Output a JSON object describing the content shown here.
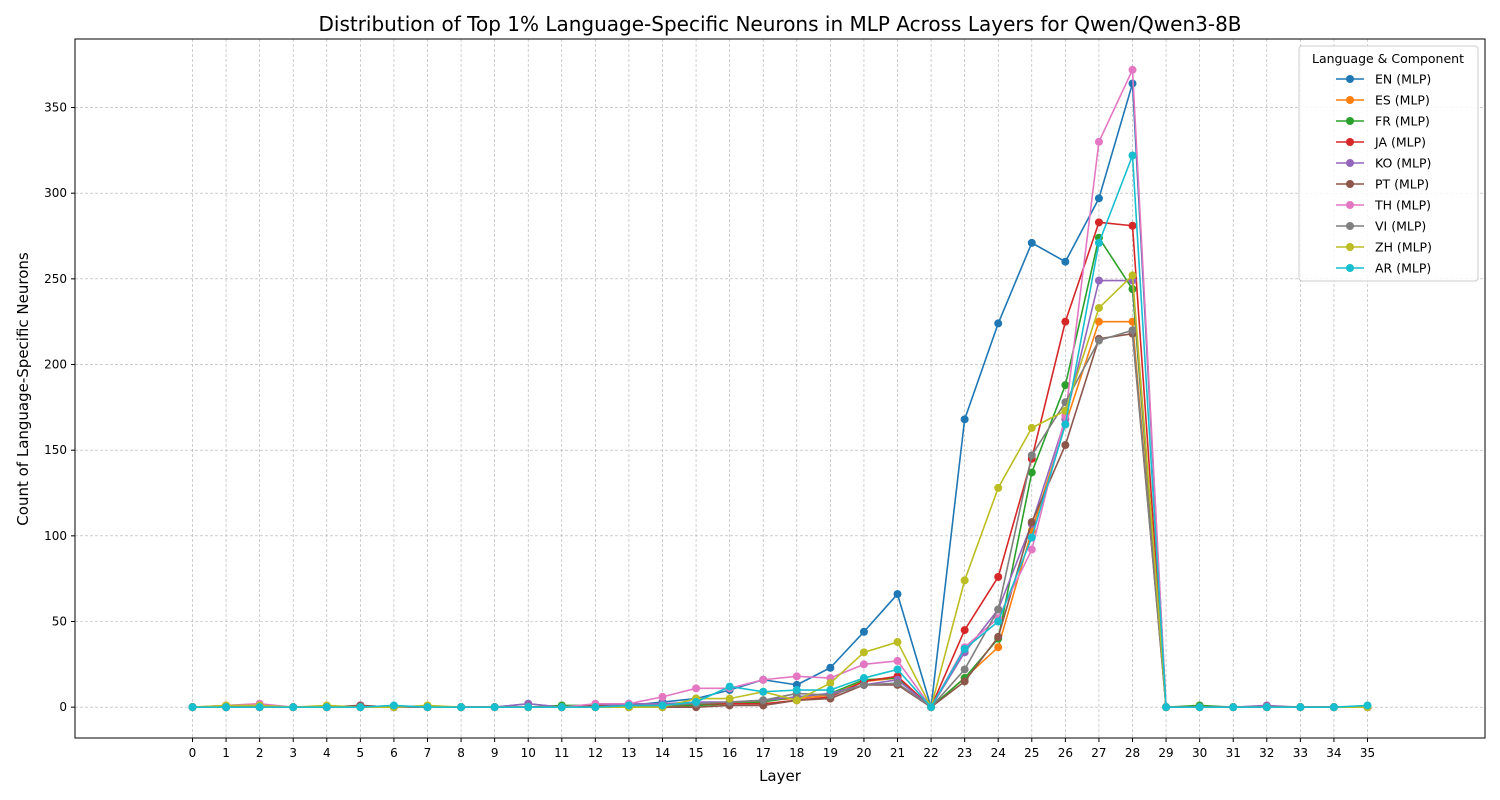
{
  "chart_data": {
    "type": "line",
    "title": "Distribution of Top 1% Language-Specific Neurons in MLP Across Layers for Qwen/Qwen3-8B",
    "xlabel": "Layer",
    "ylabel": "Count of Language-Specific Neurons",
    "x": [
      0,
      1,
      2,
      3,
      4,
      5,
      6,
      7,
      8,
      9,
      10,
      11,
      12,
      13,
      14,
      15,
      16,
      17,
      18,
      19,
      20,
      21,
      22,
      23,
      24,
      25,
      26,
      27,
      28,
      29,
      30,
      31,
      32,
      33,
      34,
      35
    ],
    "xticks": [
      "0",
      "1",
      "2",
      "3",
      "4",
      "5",
      "6",
      "7",
      "8",
      "9",
      "10",
      "11",
      "12",
      "13",
      "14",
      "15",
      "16",
      "17",
      "18",
      "19",
      "20",
      "21",
      "22",
      "23",
      "24",
      "25",
      "26",
      "27",
      "28",
      "29",
      "30",
      "31",
      "32",
      "33",
      "34",
      "35"
    ],
    "ylim": [
      -18,
      390
    ],
    "yticks": [
      "0",
      "50",
      "100",
      "150",
      "200",
      "250",
      "300",
      "350"
    ],
    "grid": true,
    "legend": {
      "title": "Language & Component",
      "placement": "top-right"
    },
    "series": [
      {
        "name": "EN (MLP)",
        "color": "#1f77b4",
        "values": [
          0,
          0,
          0,
          0,
          0,
          0,
          0,
          0,
          0,
          0,
          2,
          0,
          1,
          1,
          3,
          5,
          10,
          16,
          13,
          23,
          44,
          66,
          0,
          168,
          224,
          271,
          260,
          297,
          364,
          0,
          0,
          0,
          0,
          0,
          0,
          0
        ]
      },
      {
        "name": "ES (MLP)",
        "color": "#ff7f0e",
        "values": [
          0,
          0,
          0,
          0,
          0,
          0,
          0,
          0,
          0,
          0,
          0,
          0,
          0,
          0,
          0,
          1,
          2,
          4,
          5,
          7,
          15,
          17,
          0,
          17,
          35,
          103,
          165,
          225,
          225,
          0,
          0,
          0,
          0,
          0,
          0,
          0
        ]
      },
      {
        "name": "FR (MLP)",
        "color": "#2ca02c",
        "values": [
          0,
          0,
          0,
          0,
          0,
          0,
          0,
          0,
          0,
          0,
          0,
          1,
          1,
          0,
          1,
          1,
          2,
          3,
          6,
          8,
          16,
          17,
          0,
          17,
          40,
          137,
          188,
          274,
          244,
          0,
          1,
          0,
          0,
          0,
          0,
          0
        ]
      },
      {
        "name": "JA (MLP)",
        "color": "#d62728",
        "values": [
          0,
          0,
          0,
          0,
          0,
          0,
          0,
          0,
          0,
          0,
          0,
          0,
          0,
          1,
          1,
          2,
          2,
          2,
          4,
          6,
          15,
          18,
          0,
          45,
          76,
          145,
          225,
          283,
          281,
          0,
          0,
          0,
          0,
          0,
          0,
          0
        ]
      },
      {
        "name": "KO (MLP)",
        "color": "#9467bd",
        "values": [
          0,
          0,
          0,
          0,
          0,
          1,
          0,
          0,
          0,
          0,
          2,
          0,
          1,
          2,
          2,
          3,
          3,
          4,
          6,
          8,
          13,
          16,
          0,
          32,
          57,
          107,
          168,
          249,
          249,
          0,
          0,
          0,
          1,
          0,
          0,
          0
        ]
      },
      {
        "name": "PT (MLP)",
        "color": "#8c564b",
        "values": [
          0,
          0,
          0,
          0,
          0,
          1,
          0,
          0,
          0,
          0,
          0,
          0,
          1,
          0,
          0,
          0,
          1,
          1,
          4,
          5,
          13,
          13,
          0,
          15,
          41,
          108,
          153,
          215,
          218,
          0,
          0,
          0,
          0,
          0,
          0,
          0
        ]
      },
      {
        "name": "TH (MLP)",
        "color": "#e377c2",
        "values": [
          0,
          1,
          2,
          0,
          0,
          0,
          0,
          0,
          0,
          0,
          0,
          0,
          2,
          2,
          6,
          11,
          11,
          16,
          18,
          17,
          25,
          27,
          0,
          35,
          52,
          92,
          170,
          330,
          372,
          0,
          0,
          0,
          0,
          0,
          0,
          0
        ]
      },
      {
        "name": "VI (MLP)",
        "color": "#7f7f7f",
        "values": [
          0,
          0,
          0,
          0,
          0,
          0,
          0,
          0,
          0,
          0,
          0,
          0,
          0,
          0,
          1,
          2,
          3,
          4,
          8,
          7,
          13,
          14,
          0,
          22,
          57,
          147,
          178,
          214,
          220,
          0,
          0,
          0,
          0,
          0,
          0,
          0
        ]
      },
      {
        "name": "ZH (MLP)",
        "color": "#bcbd22",
        "values": [
          0,
          1,
          1,
          0,
          1,
          0,
          0,
          1,
          0,
          0,
          0,
          0,
          0,
          0,
          0,
          5,
          5,
          9,
          4,
          14,
          32,
          38,
          0,
          74,
          128,
          163,
          173,
          233,
          252,
          0,
          0,
          0,
          0,
          0,
          0,
          0
        ]
      },
      {
        "name": "AR (MLP)",
        "color": "#17becf",
        "values": [
          0,
          0,
          0,
          0,
          0,
          0,
          1,
          0,
          0,
          0,
          0,
          0,
          0,
          1,
          1,
          3,
          12,
          9,
          10,
          10,
          17,
          22,
          0,
          34,
          50,
          99,
          165,
          271,
          322,
          0,
          0,
          0,
          0,
          0,
          0,
          1
        ]
      }
    ]
  }
}
